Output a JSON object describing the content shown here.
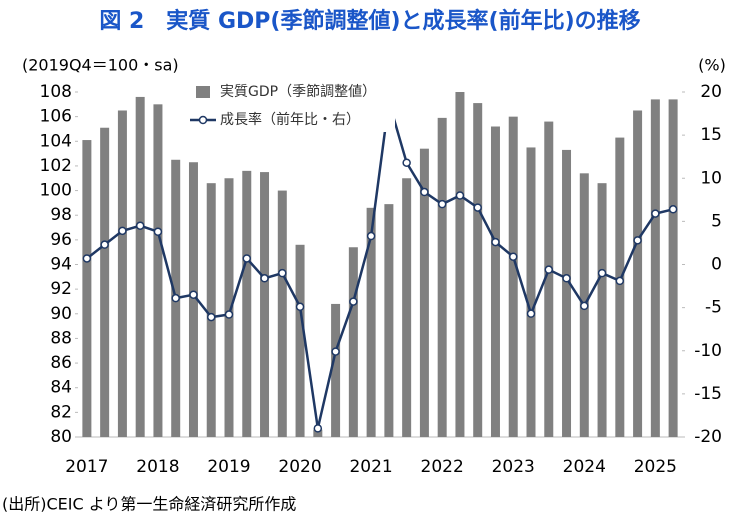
{
  "chart_data": {
    "type": "bar_line",
    "title": "図 2　実質 GDP(季節調整値)と成長率(前年比)の推移",
    "title_color": "#1a56c8",
    "y_axis_label": "(2019Q4＝100・sa)",
    "y2_axis_label": "(%)",
    "source": "(出所)CEIC より第一生命経済研究所作成",
    "categories": [
      "2017",
      null,
      null,
      null,
      "2018",
      null,
      null,
      null,
      "2019",
      null,
      null,
      null,
      "2020",
      null,
      null,
      null,
      "2021",
      null,
      null,
      null,
      "2022",
      null,
      null,
      null,
      "2023",
      null,
      null,
      null,
      "2024",
      null,
      null,
      null,
      "2025",
      null
    ],
    "series": [
      {
        "name": "実質GDP（季節調整値）",
        "type": "bar",
        "color": "#808080",
        "values": [
          104.1,
          105.1,
          106.5,
          107.6,
          107.0,
          102.5,
          102.3,
          100.6,
          101.0,
          101.6,
          101.5,
          100.0,
          95.6,
          80.6,
          90.8,
          95.4,
          98.6,
          98.9,
          101.0,
          103.4,
          105.9,
          108.0,
          107.1,
          105.2,
          106.0,
          103.5,
          105.6,
          103.3,
          101.4,
          100.6,
          104.3,
          106.5,
          107.4,
          107.4
        ]
      },
      {
        "name": "成長率（前年比・右）",
        "type": "line",
        "axis": "y2",
        "color": "#1f3864",
        "values": [
          0.7,
          2.3,
          3.9,
          4.5,
          3.8,
          -3.9,
          -3.5,
          -6.1,
          -5.8,
          0.7,
          -1.6,
          -1.0,
          -4.9,
          -19.0,
          -10.1,
          -4.3,
          3.3,
          18.9,
          11.8,
          8.4,
          7.0,
          8.0,
          6.6,
          2.6,
          0.9,
          -5.7,
          -0.6,
          -1.6,
          -4.8,
          -1.0,
          -1.9,
          2.8,
          5.9,
          6.4
        ]
      }
    ],
    "ylim": [
      80,
      108
    ],
    "yticks": [
      80,
      82,
      84,
      86,
      88,
      90,
      92,
      94,
      96,
      98,
      100,
      102,
      104,
      106,
      108
    ],
    "y2lim": [
      -20,
      20
    ],
    "y2ticks": [
      -20,
      -15,
      -10,
      -5,
      0,
      5,
      10,
      15,
      20
    ],
    "y2tick_negative_color": "#ff0000",
    "grid": false
  }
}
